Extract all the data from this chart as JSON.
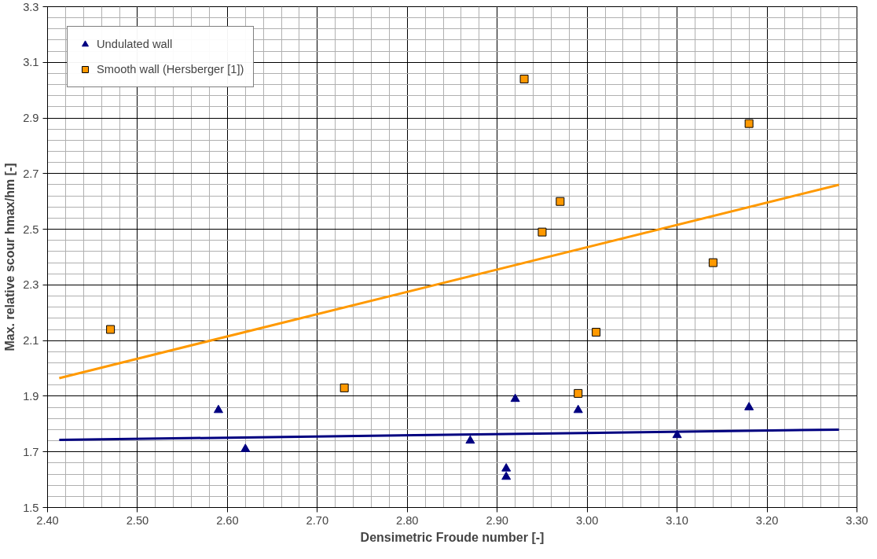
{
  "chart_data": {
    "type": "scatter",
    "xlabel": "Densimetric Froude number [-]",
    "ylabel": "Max. relative scour hmax/hm [-]",
    "xlim": [
      2.4,
      3.3
    ],
    "ylim": [
      1.5,
      3.3
    ],
    "xticks": [
      {
        "value": 2.4,
        "label": "2.40"
      },
      {
        "value": 2.5,
        "label": "2.50"
      },
      {
        "value": 2.6,
        "label": "2.60"
      },
      {
        "value": 2.7,
        "label": "2.70"
      },
      {
        "value": 2.8,
        "label": "2.80"
      },
      {
        "value": 2.9,
        "label": "2.90"
      },
      {
        "value": 3.0,
        "label": "3.00"
      },
      {
        "value": 3.1,
        "label": "3.10"
      },
      {
        "value": 3.2,
        "label": "3.20"
      },
      {
        "value": 3.3,
        "label": "3.30"
      }
    ],
    "yticks": [
      1.5,
      1.7,
      1.9,
      2.1,
      2.3,
      2.5,
      2.7,
      2.9,
      3.1,
      3.3
    ],
    "grid": true,
    "legend": "top left",
    "series": [
      {
        "name": "Undulated wall",
        "marker": "triangle",
        "color": "#000080",
        "x": [
          2.59,
          2.62,
          2.87,
          2.91,
          2.91,
          2.92,
          2.99,
          3.1,
          3.18
        ],
        "values": [
          1.85,
          1.71,
          1.74,
          1.64,
          1.61,
          1.89,
          1.85,
          1.76,
          1.86
        ]
      },
      {
        "name": "Smooth wall (Hersberger [1])",
        "marker": "square",
        "color": "#ff9900",
        "x": [
          2.47,
          2.73,
          2.93,
          2.95,
          2.97,
          2.99,
          3.01,
          3.14,
          3.18
        ],
        "values": [
          2.14,
          1.93,
          3.04,
          2.49,
          2.6,
          1.91,
          2.13,
          2.38,
          2.88
        ]
      },
      {
        "type": "line",
        "color": "#000080",
        "x": [
          2.413,
          3.28
        ],
        "values": [
          1.743,
          1.78
        ]
      },
      {
        "type": "line",
        "color": "#ff9900",
        "x": [
          2.413,
          3.28
        ],
        "values": [
          1.965,
          2.66
        ]
      }
    ]
  }
}
